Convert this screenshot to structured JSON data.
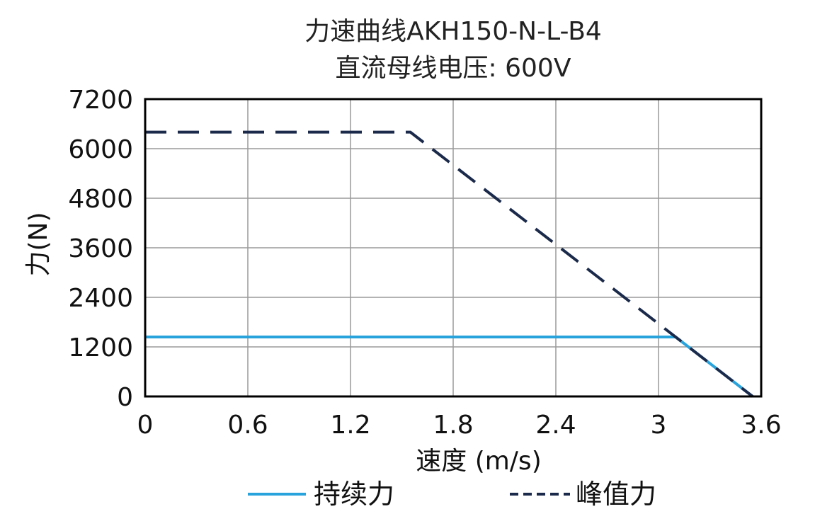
{
  "chart_data": {
    "type": "line",
    "title": "力速曲线AKH150-N-L-B4",
    "subtitle": "直流母线电压: 600V",
    "xlabel": "速度 (m/s)",
    "ylabel": "力(N)",
    "xlim": [
      0,
      3.6
    ],
    "ylim": [
      0,
      7200
    ],
    "xticks": [
      "0",
      "0.6",
      "1.2",
      "1.8",
      "2.4",
      "3",
      "3.6"
    ],
    "yticks": [
      "0",
      "1200",
      "2400",
      "3600",
      "4800",
      "6000",
      "7200"
    ],
    "xtick_values": [
      0,
      0.6,
      1.2,
      1.8,
      2.4,
      3.0,
      3.6
    ],
    "ytick_values": [
      0,
      1200,
      2400,
      3600,
      4800,
      6000,
      7200
    ],
    "grid": true,
    "legend_position": "bottom",
    "series": [
      {
        "name": "持续力",
        "style": "solid",
        "color": "#29a3dc",
        "x": [
          0,
          3.1,
          3.55
        ],
        "y": [
          1440,
          1440,
          0
        ]
      },
      {
        "name": "峰值力",
        "style": "dashed",
        "color": "#1b2a4a",
        "x": [
          0,
          1.55,
          3.55
        ],
        "y": [
          6400,
          6400,
          0
        ]
      }
    ]
  }
}
